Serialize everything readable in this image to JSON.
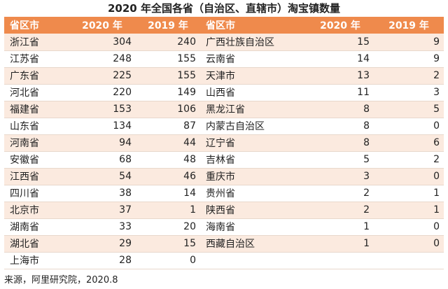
{
  "title": "2020 年全国各省（自治区、直辖市）淘宝镇数量",
  "header": [
    "省区市",
    "2020 年",
    "2019 年",
    "省区市",
    "2020 年",
    "2019 年"
  ],
  "left": [
    [
      "浙江省",
      304,
      240
    ],
    [
      "江苏省",
      248,
      155
    ],
    [
      "广东省",
      225,
      155
    ],
    [
      "河北省",
      220,
      149
    ],
    [
      "福建省",
      153,
      106
    ],
    [
      "山东省",
      134,
      87
    ],
    [
      "河南省",
      94,
      44
    ],
    [
      "安徽省",
      68,
      48
    ],
    [
      "江西省",
      54,
      46
    ],
    [
      "四川省",
      38,
      14
    ],
    [
      "北京市",
      37,
      1
    ],
    [
      "湖南省",
      33,
      20
    ],
    [
      "湖北省",
      29,
      15
    ],
    [
      "上海市",
      28,
      0
    ]
  ],
  "right": [
    [
      "广西壮族自治区",
      15,
      9
    ],
    [
      "云南省",
      14,
      9
    ],
    [
      "天津市",
      13,
      2
    ],
    [
      "山西省",
      11,
      3
    ],
    [
      "黑龙江省",
      8,
      5
    ],
    [
      "内蒙古自治区",
      8,
      0
    ],
    [
      "辽宁省",
      8,
      6
    ],
    [
      "吉林省",
      5,
      2
    ],
    [
      "重庆市",
      3,
      0
    ],
    [
      "贵州省",
      2,
      1
    ],
    [
      "陕西省",
      2,
      1
    ],
    [
      "海南省",
      1,
      0
    ],
    [
      "西藏自治区",
      1,
      0
    ]
  ],
  "source": "来源，阿里研究院，2020.8"
}
